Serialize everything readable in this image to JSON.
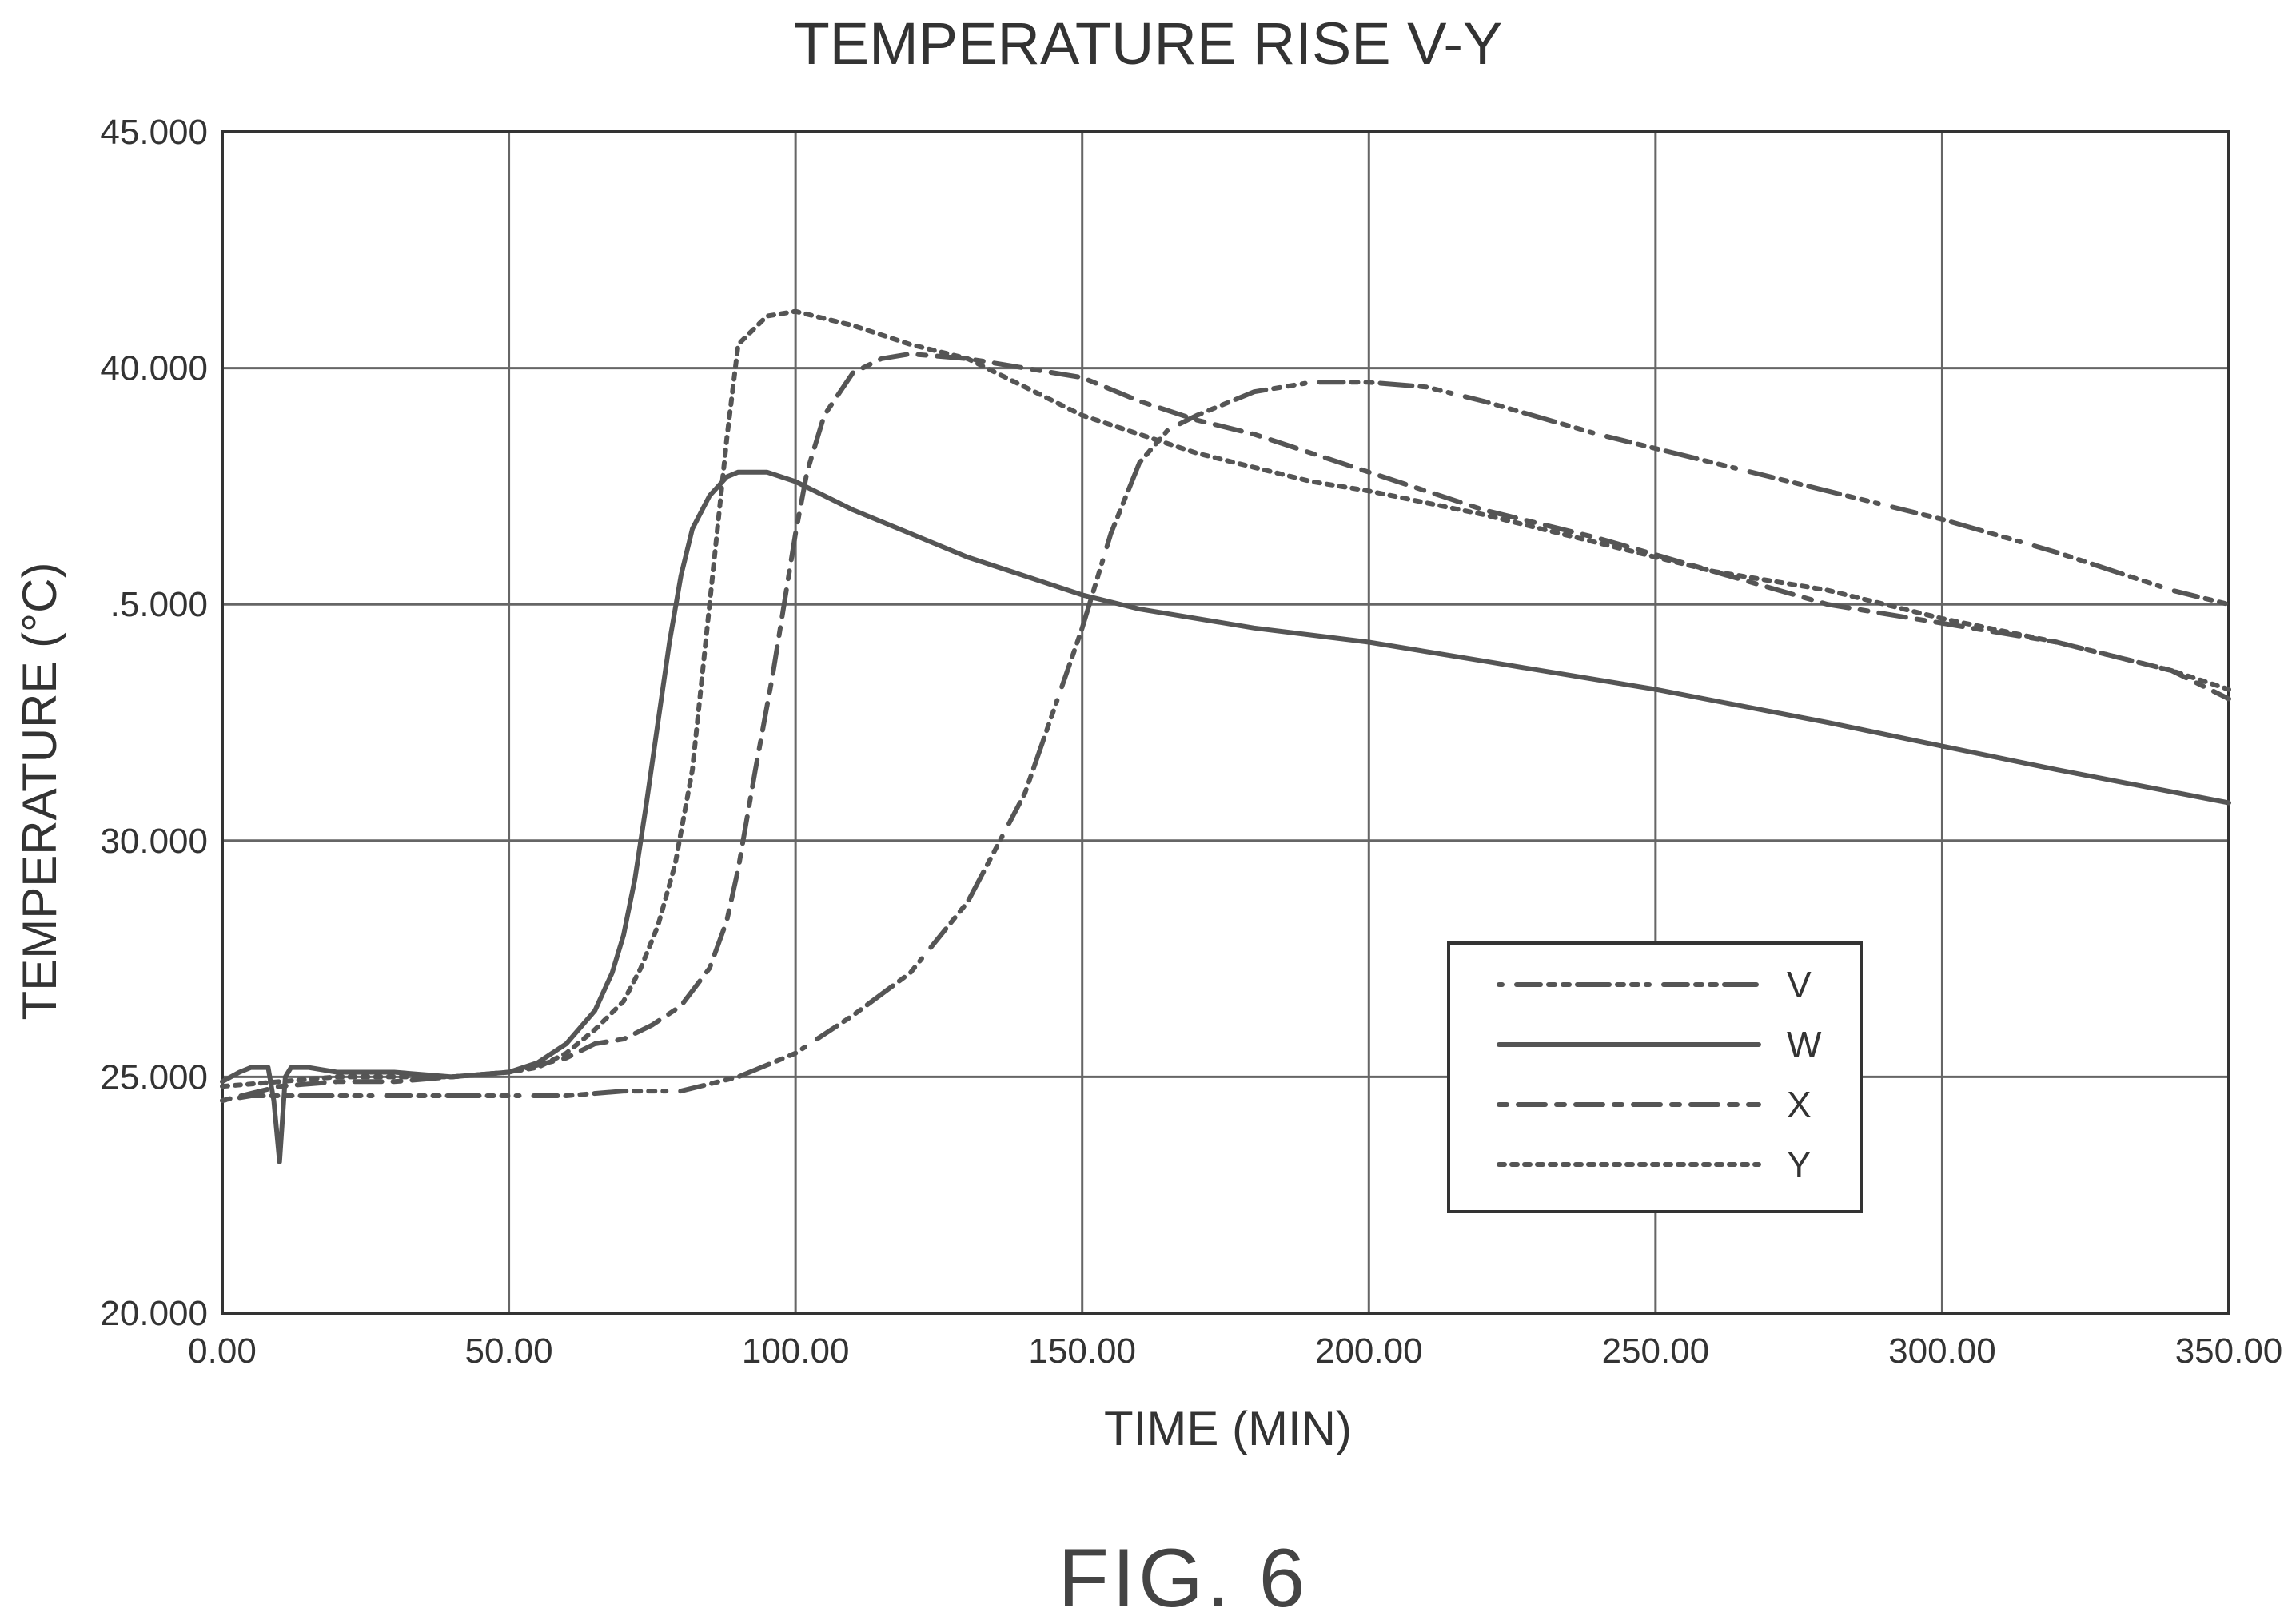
{
  "figure_label": "FIG. 6",
  "chart_data": {
    "type": "line",
    "title": "TEMPERATURE RISE V-Y",
    "xlabel": "TIME (MIN)",
    "ylabel": "TEMPERATURE (°C)",
    "xlim": [
      0,
      350
    ],
    "ylim": [
      20,
      45
    ],
    "xticks": [
      0,
      50,
      100,
      150,
      200,
      250,
      300,
      350
    ],
    "xtick_labels": [
      "0.00",
      "50.00",
      "100.00",
      "150.00",
      "200.00",
      "250.00",
      "300.00",
      "350.00"
    ],
    "yticks": [
      20,
      25,
      30,
      35,
      40,
      45
    ],
    "ytick_labels": [
      "20.000",
      "25.000",
      "30.000",
      ".5.000",
      "40.000",
      "45.000"
    ],
    "grid": true,
    "legend_position": "lower-right",
    "series": [
      {
        "name": "V",
        "dash": "v",
        "x": [
          0,
          5,
          10,
          20,
          40,
          60,
          70,
          80,
          90,
          100,
          110,
          120,
          130,
          140,
          150,
          155,
          160,
          165,
          170,
          180,
          190,
          200,
          210,
          220,
          240,
          260,
          280,
          300,
          320,
          340,
          350
        ],
        "y": [
          24.5,
          24.6,
          24.6,
          24.6,
          24.6,
          24.6,
          24.7,
          24.7,
          25.0,
          25.5,
          26.3,
          27.2,
          28.7,
          31.0,
          34.5,
          36.5,
          38.0,
          38.7,
          39.0,
          39.5,
          39.7,
          39.7,
          39.6,
          39.3,
          38.6,
          38.0,
          37.4,
          36.8,
          36.1,
          35.3,
          35.0
        ]
      },
      {
        "name": "W",
        "dash": "w",
        "x": [
          0,
          3,
          5,
          8,
          9,
          10,
          11,
          12,
          15,
          20,
          30,
          40,
          50,
          55,
          60,
          65,
          68,
          70,
          72,
          74,
          76,
          78,
          80,
          82,
          85,
          88,
          90,
          95,
          100,
          110,
          120,
          130,
          140,
          150,
          160,
          180,
          200,
          220,
          250,
          280,
          300,
          320,
          350
        ],
        "y": [
          24.9,
          25.1,
          25.2,
          25.2,
          24.5,
          23.2,
          25.0,
          25.2,
          25.2,
          25.1,
          25.1,
          25.0,
          25.1,
          25.3,
          25.7,
          26.4,
          27.2,
          28.0,
          29.2,
          30.8,
          32.5,
          34.2,
          35.6,
          36.6,
          37.3,
          37.7,
          37.8,
          37.8,
          37.6,
          37.0,
          36.5,
          36.0,
          35.6,
          35.2,
          34.9,
          34.5,
          34.2,
          33.8,
          33.2,
          32.5,
          32.0,
          31.5,
          30.8
        ]
      },
      {
        "name": "X",
        "dash": "x",
        "x": [
          0,
          10,
          20,
          30,
          40,
          50,
          60,
          65,
          70,
          75,
          80,
          85,
          88,
          90,
          93,
          96,
          98,
          100,
          102,
          105,
          110,
          115,
          120,
          130,
          140,
          150,
          160,
          170,
          180,
          200,
          220,
          240,
          260,
          280,
          300,
          320,
          340,
          350
        ],
        "y": [
          24.5,
          24.8,
          24.9,
          24.9,
          25.0,
          25.1,
          25.4,
          25.7,
          25.8,
          26.1,
          26.5,
          27.3,
          28.3,
          29.4,
          31.5,
          33.5,
          35.0,
          36.5,
          37.8,
          39.0,
          39.9,
          40.2,
          40.3,
          40.2,
          40.0,
          39.8,
          39.3,
          38.9,
          38.6,
          37.8,
          37.0,
          36.4,
          35.7,
          35.0,
          34.6,
          34.2,
          33.6,
          33.0
        ]
      },
      {
        "name": "Y",
        "dash": "y",
        "x": [
          0,
          10,
          20,
          30,
          40,
          50,
          55,
          60,
          65,
          70,
          73,
          76,
          79,
          82,
          85,
          88,
          90,
          95,
          100,
          110,
          120,
          130,
          140,
          150,
          160,
          170,
          180,
          190,
          200,
          220,
          240,
          260,
          280,
          300,
          320,
          340,
          350
        ],
        "y": [
          24.8,
          24.9,
          25.0,
          25.0,
          25.0,
          25.1,
          25.2,
          25.5,
          26.0,
          26.6,
          27.3,
          28.2,
          29.5,
          31.5,
          35.0,
          38.5,
          40.5,
          41.1,
          41.2,
          40.9,
          40.5,
          40.2,
          39.6,
          39.0,
          38.6,
          38.2,
          37.9,
          37.6,
          37.4,
          36.9,
          36.3,
          35.7,
          35.3,
          34.7,
          34.2,
          33.6,
          33.2
        ]
      }
    ]
  }
}
